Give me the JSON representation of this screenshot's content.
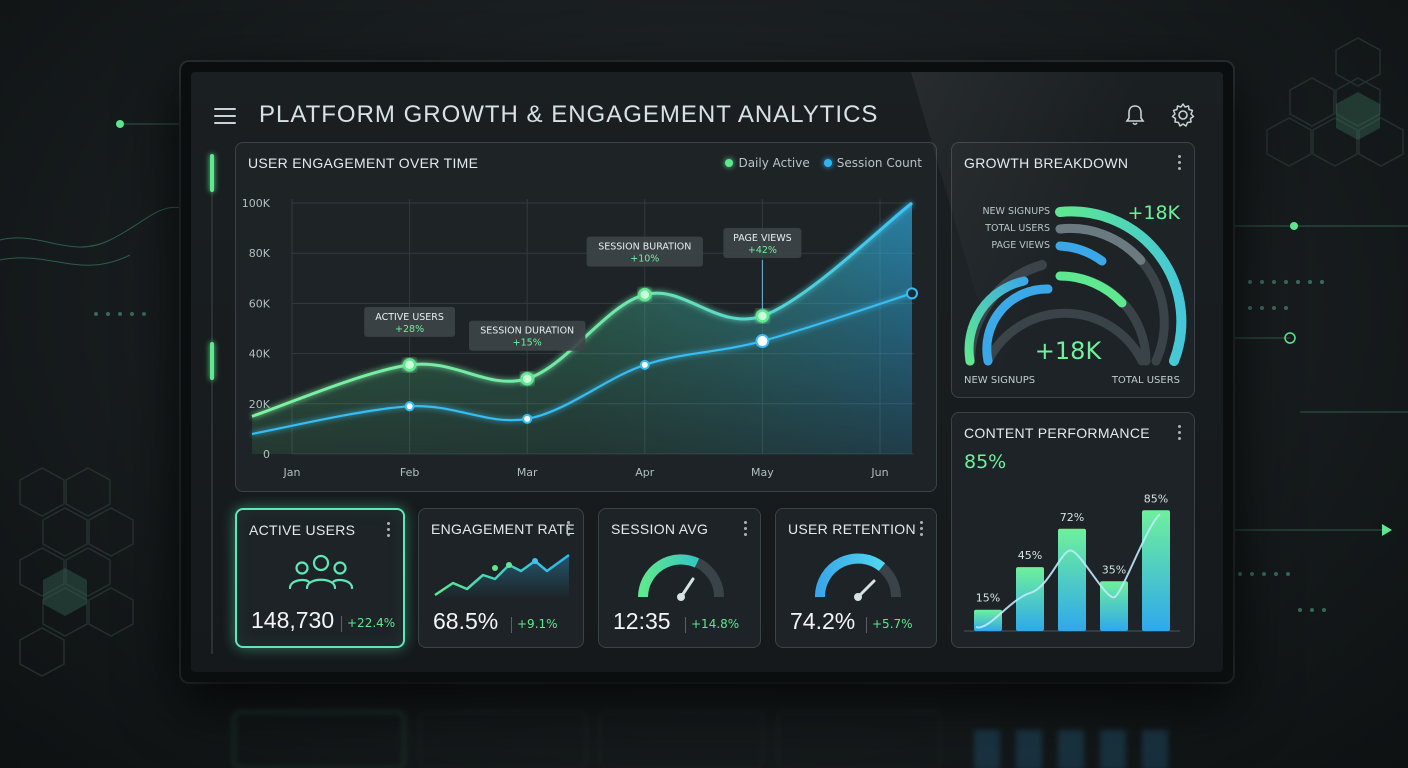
{
  "header": {
    "title": "PLATFORM GROWTH & ENGAGEMENT ANALYTICS",
    "menu_icon": "hamburger-menu-icon",
    "notification_icon": "bell-icon",
    "settings_icon": "gear-icon"
  },
  "colors": {
    "accent_green": "#5ee88f",
    "accent_blue": "#2fb5f0",
    "card_bg": "#1e2427"
  },
  "engagement": {
    "title": "USER ENGAGEMENT OVER TIME",
    "legend": [
      "Daily Active",
      "Session Count"
    ],
    "annotations": [
      {
        "label": "ACTIVE USERS",
        "delta": "+28%"
      },
      {
        "label": "SESSION DURATION",
        "delta": "+15%"
      },
      {
        "label": "SESSION BURATION",
        "delta": "+10%"
      },
      {
        "label": "PAGE VIEWS",
        "delta": "+42%"
      }
    ]
  },
  "chart_data": [
    {
      "type": "area",
      "title": "USER ENGAGEMENT OVER TIME",
      "categories": [
        "Jan",
        "Feb",
        "Mar",
        "Apr",
        "May",
        "Jun"
      ],
      "y_ticks": [
        "0",
        "20K",
        "40K",
        "60K",
        "80K",
        "100K"
      ],
      "ylim": [
        0,
        100000
      ],
      "series": [
        {
          "name": "Daily Active",
          "values": [
            15000,
            35500,
            30000,
            63500,
            55000,
            100000
          ]
        },
        {
          "name": "Session Count",
          "values": [
            8000,
            19000,
            14000,
            35500,
            45000,
            64000
          ]
        }
      ]
    },
    {
      "type": "bar",
      "title": "CONTENT PERFORMANCE",
      "values": [
        15,
        45,
        72,
        35,
        85
      ],
      "labels": [
        "15%",
        "45%",
        "72%",
        "35%",
        "85%"
      ]
    }
  ],
  "growth": {
    "title": "GROWTH BREAKDOWN",
    "legend": [
      "NEW SIGNUPS",
      "TOTAL USERS",
      "PAGE VIEWS"
    ],
    "top_value": "+18K",
    "center_value": "+18K",
    "left_label": "NEW SIGNUPS",
    "right_label": "TOTAL USERS"
  },
  "content": {
    "title": "CONTENT PERFORMANCE",
    "headline": "85%"
  },
  "kpis": [
    {
      "title": "ACTIVE USERS",
      "value": "148,730",
      "delta": "+22.4%",
      "icon": "users-icon"
    },
    {
      "title": "ENGAGEMENT RATE",
      "value": "68.5%",
      "delta": "+9.1%",
      "icon": "sparkline-icon"
    },
    {
      "title": "SESSION AVG",
      "value": "12:35",
      "delta": "+14.8%",
      "icon": "gauge-icon"
    },
    {
      "title": "USER RETENTION",
      "value": "74.2%",
      "delta": "+5.7%",
      "icon": "gauge-icon"
    }
  ]
}
